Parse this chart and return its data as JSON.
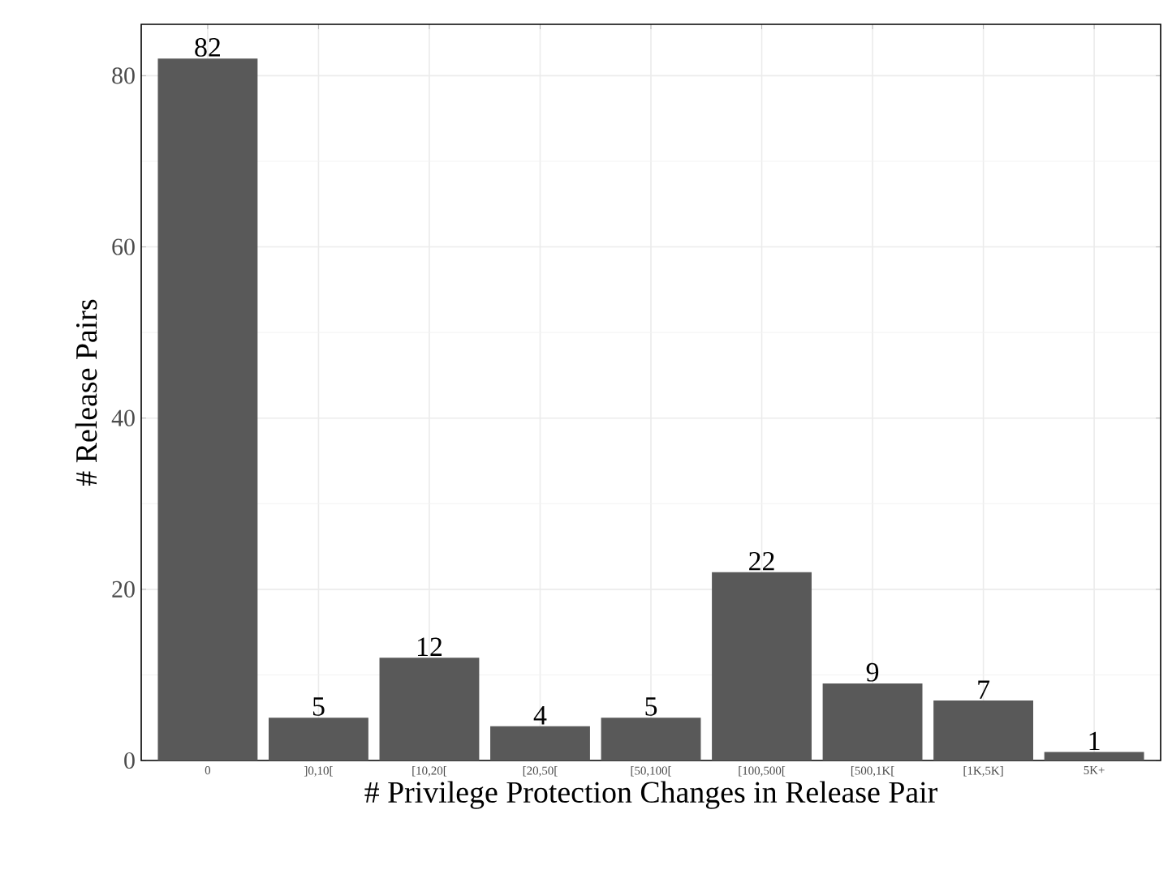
{
  "chart_data": {
    "type": "bar",
    "xlabel": "# Privilege Protection Changes in Release Pair",
    "ylabel": "# Release Pairs",
    "categories": [
      "0",
      "]0,10[",
      "[10,20[",
      "[20,50[",
      "[50,100[",
      "[100,500[",
      "[500,1K[",
      "[1K,5K]",
      "5K+"
    ],
    "values": [
      82,
      5,
      12,
      4,
      5,
      22,
      9,
      7,
      1
    ],
    "color": "#595959",
    "ylim": [
      0,
      86
    ],
    "yticks": [
      0,
      20,
      40,
      60,
      80
    ],
    "grid": true,
    "data_labels": true
  }
}
